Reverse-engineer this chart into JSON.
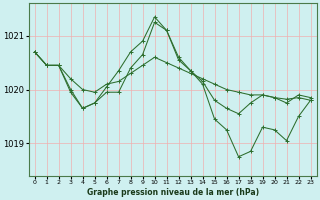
{
  "title": "Graphe pression niveau de la mer (hPa)",
  "background_color": "#cff0f0",
  "grid_color": "#f0b0b0",
  "line_color": "#2d6e2d",
  "xlim": [
    -0.5,
    23.5
  ],
  "ylim": [
    1018.4,
    1021.6
  ],
  "yticks": [
    1019,
    1020,
    1021
  ],
  "xticks": [
    0,
    1,
    2,
    3,
    4,
    5,
    6,
    7,
    8,
    9,
    10,
    11,
    12,
    13,
    14,
    15,
    16,
    17,
    18,
    19,
    20,
    21,
    22,
    23
  ],
  "series": [
    [
      1020.7,
      1020.45,
      1020.45,
      1020.2,
      1020.0,
      1019.95,
      1020.1,
      1020.15,
      1020.3,
      1020.45,
      1020.6,
      1020.5,
      1020.4,
      1020.3,
      1020.2,
      1020.1,
      1020.0,
      1019.95,
      1019.9,
      1019.9,
      1019.85,
      1019.82,
      1019.85,
      1019.8
    ],
    [
      1020.7,
      1020.45,
      1020.45,
      1020.0,
      1019.65,
      1019.75,
      1020.05,
      1020.35,
      1020.7,
      1020.9,
      1021.35,
      1021.1,
      1020.6,
      1020.35,
      1020.15,
      1019.8,
      1019.65,
      1019.55,
      1019.75,
      1019.9,
      1019.85,
      1019.75,
      1019.9,
      1019.85
    ],
    [
      1020.7,
      1020.45,
      1020.45,
      1019.95,
      1019.65,
      1019.75,
      1019.95,
      1019.95,
      1020.4,
      1020.65,
      1021.25,
      1021.1,
      1020.55,
      1020.35,
      1020.1,
      1019.45,
      1019.25,
      1018.75,
      1018.85,
      1019.3,
      1019.25,
      1019.05,
      1019.5,
      1019.8
    ]
  ]
}
